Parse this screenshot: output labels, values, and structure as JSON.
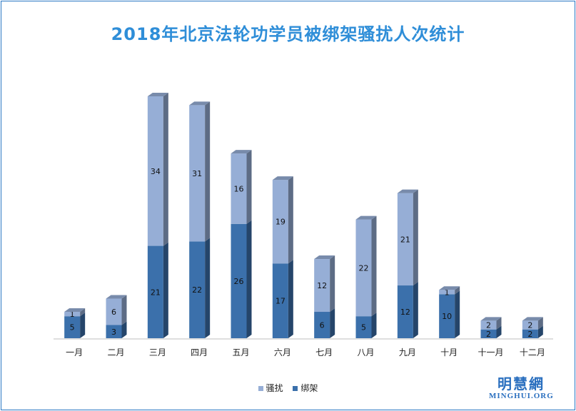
{
  "chart_data": {
    "type": "bar",
    "stacked": true,
    "title": "2018年北京法轮功学员被绑架骚扰人次统计",
    "categories": [
      "一月",
      "二月",
      "三月",
      "四月",
      "五月",
      "六月",
      "七月",
      "八月",
      "九月",
      "十月",
      "十一月",
      "十二月"
    ],
    "series": [
      {
        "name": "绑架",
        "values": [
          5,
          3,
          21,
          22,
          26,
          17,
          6,
          5,
          12,
          10,
          2,
          2
        ],
        "color": "#3b70ab"
      },
      {
        "name": "骚扰",
        "values": [
          1,
          6,
          34,
          31,
          16,
          19,
          12,
          22,
          21,
          1,
          2,
          2
        ],
        "color": "#96aed6"
      }
    ],
    "xlabel": "",
    "ylabel": "",
    "ylim": [
      0,
      60
    ],
    "grid": false,
    "legend_position": "bottom"
  },
  "legend_items": [
    {
      "label": "骚扰",
      "color": "#96aed6"
    },
    {
      "label": "绑架",
      "color": "#3b70ab"
    }
  ],
  "watermark": {
    "cn": "明慧網",
    "en": "MINGHUI.ORG"
  }
}
